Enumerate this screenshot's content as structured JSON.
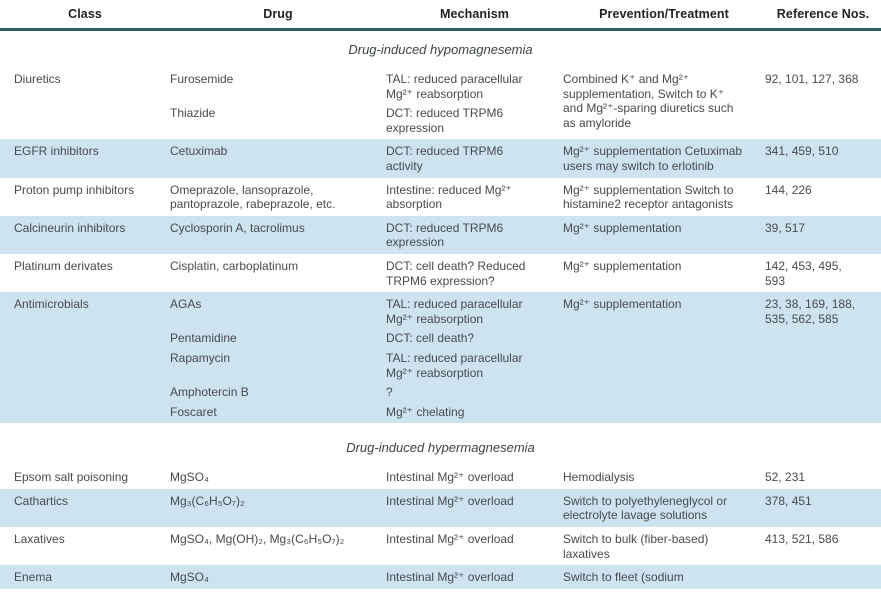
{
  "colors": {
    "row_shade": "#cde3f0",
    "header_rule": "#2f6066",
    "body_text": "#464b4e",
    "header_text": "#1e2223"
  },
  "table": {
    "columns": [
      {
        "label": "Class"
      },
      {
        "label": "Drug"
      },
      {
        "label": "Mechanism"
      },
      {
        "label": "Prevention/Treatment"
      },
      {
        "label": "Reference Nos."
      }
    ],
    "sections": [
      {
        "title": "Drug-induced hypomagnesemia",
        "rows": [
          {
            "class": "Diuretics",
            "entries": [
              {
                "drug": "Furosemide",
                "mechanism": "TAL: reduced paracellular Mg²⁺ reabsorption"
              },
              {
                "drug": "Thiazide",
                "mechanism": "DCT: reduced TRPM6 expression"
              }
            ],
            "prevention": "Combined K⁺ and Mg²⁺ supplementation, Switch to K⁺ and Mg²⁺-sparing diuretics such as amyloride",
            "references": "92, 101, 127, 368",
            "shaded": false
          },
          {
            "class": "EGFR inhibitors",
            "entries": [
              {
                "drug": "Cetuximab",
                "mechanism": "DCT: reduced TRPM6 activity"
              }
            ],
            "prevention": "Mg²⁺ supplementation Cetuximab users may switch to erlotinib",
            "references": "341, 459, 510",
            "shaded": true
          },
          {
            "class": "Proton pump inhibitors",
            "entries": [
              {
                "drug": "Omeprazole, lansoprazole, pantoprazole, rabeprazole, etc.",
                "mechanism": "Intestine: reduced Mg²⁺ absorption"
              }
            ],
            "prevention": "Mg²⁺ supplementation Switch to histamine2 receptor antagonists",
            "references": "144, 226",
            "shaded": false
          },
          {
            "class": "Calcineurin inhibitors",
            "entries": [
              {
                "drug": "Cyclosporin A, tacrolimus",
                "mechanism": "DCT: reduced TRPM6 expression"
              }
            ],
            "prevention": "Mg²⁺ supplementation",
            "references": "39, 517",
            "shaded": true
          },
          {
            "class": "Platinum derivates",
            "entries": [
              {
                "drug": "Cisplatin, carboplatinum",
                "mechanism": "DCT: cell death? Reduced TRPM6 expression?"
              }
            ],
            "prevention": "Mg²⁺ supplementation",
            "references": "142, 453, 495, 593",
            "shaded": false
          },
          {
            "class": "Antimicrobials",
            "entries": [
              {
                "drug": "AGAs",
                "mechanism": "TAL: reduced paracellular Mg²⁺ reabsorption"
              },
              {
                "drug": "Pentamidine",
                "mechanism": "DCT: cell death?"
              },
              {
                "drug": "Rapamycin",
                "mechanism": "TAL: reduced paracellular Mg²⁺ reabsorption"
              },
              {
                "drug": "Amphotercin B",
                "mechanism": "?"
              },
              {
                "drug": "Foscaret",
                "mechanism": "Mg²⁺ chelating"
              }
            ],
            "prevention": "Mg²⁺ supplementation",
            "references": "23, 38, 169, 188, 535, 562, 585",
            "shaded": true
          }
        ]
      },
      {
        "title": "Drug-induced hypermagnesemia",
        "rows": [
          {
            "class": "Epsom salt poisoning",
            "entries": [
              {
                "drug": "MgSO₄",
                "mechanism": "Intestinal Mg²⁺ overload"
              }
            ],
            "prevention": "Hemodialysis",
            "references": "52, 231",
            "shaded": false
          },
          {
            "class": "Cathartics",
            "entries": [
              {
                "drug": "Mg₃(C₆H₅O₇)₂",
                "mechanism": "Intestinal Mg²⁺ overload"
              }
            ],
            "prevention": "Switch to polyethyleneglycol or electrolyte lavage solutions",
            "references": "378, 451",
            "shaded": true
          },
          {
            "class": "Laxatives",
            "entries": [
              {
                "drug": "MgSO₄, Mg(OH)₂, Mg₃(C₆H₅O₇)₂",
                "mechanism": "Intestinal Mg²⁺ overload"
              }
            ],
            "prevention": "Switch to bulk (fiber-based) laxatives",
            "references": "413, 521, 586",
            "shaded": false
          },
          {
            "class": "Enema",
            "entries": [
              {
                "drug": "MgSO₄",
                "mechanism": "Intestinal Mg²⁺ overload"
              }
            ],
            "prevention": "Switch to fleet (sodium",
            "references": "",
            "shaded": true
          }
        ]
      }
    ]
  }
}
